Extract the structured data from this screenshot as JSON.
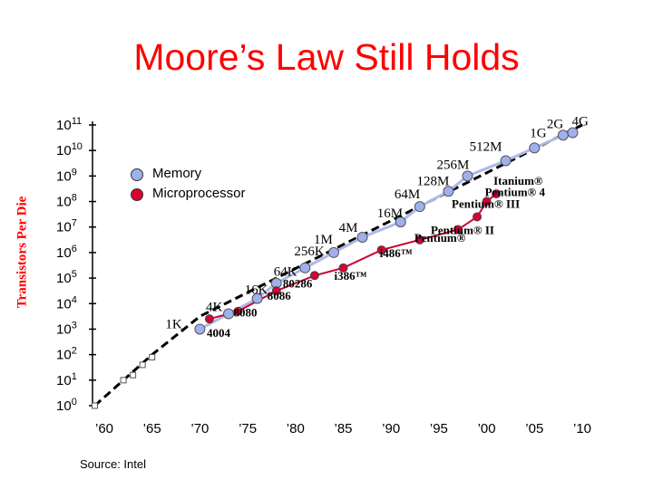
{
  "title": "Moore’s Law Still Holds",
  "source": "Source: Intel",
  "colors": {
    "memory": "#a0b0ec",
    "micro": "#dd0033",
    "memory_line": "#b0b8e8",
    "micro_line": "#cc0033",
    "trend": "#000000",
    "title": "#ff0000"
  },
  "chart_data": {
    "type": "line",
    "title": "Moore’s Law Still Holds",
    "ylabel": "Transistors Per Die",
    "xlabel": "",
    "y_scale": "log10",
    "ylim_exp": [
      0,
      11
    ],
    "xlim": [
      1958,
      2011
    ],
    "x_ticks": [
      {
        "value": 1960,
        "label": "’60"
      },
      {
        "value": 1965,
        "label": "’65"
      },
      {
        "value": 1970,
        "label": "’70"
      },
      {
        "value": 1975,
        "label": "’75"
      },
      {
        "value": 1980,
        "label": "’80"
      },
      {
        "value": 1985,
        "label": "’85"
      },
      {
        "value": 1990,
        "label": "’90"
      },
      {
        "value": 1995,
        "label": "’95"
      },
      {
        "value": 2000,
        "label": "’00"
      },
      {
        "value": 2005,
        "label": "’05"
      },
      {
        "value": 2010,
        "label": "’10"
      }
    ],
    "y_ticks": [
      0,
      1,
      2,
      3,
      4,
      5,
      6,
      7,
      8,
      9,
      10,
      11
    ],
    "legend": [
      {
        "name": "Memory",
        "color": "#a0b0ec"
      },
      {
        "name": "Microprocessor",
        "color": "#dd0033"
      }
    ],
    "series": [
      {
        "name": "Memory",
        "points": [
          {
            "x": 1970,
            "y": 3.0,
            "label": "1K"
          },
          {
            "x": 1973,
            "y": 3.6,
            "label": "4K"
          },
          {
            "x": 1976,
            "y": 4.2,
            "label": "16K"
          },
          {
            "x": 1978,
            "y": 4.8,
            "label": "64K"
          },
          {
            "x": 1981,
            "y": 5.4,
            "label": "256K"
          },
          {
            "x": 1984,
            "y": 6.0,
            "label": "1M"
          },
          {
            "x": 1987,
            "y": 6.6,
            "label": "4M"
          },
          {
            "x": 1991,
            "y": 7.2,
            "label": "16M"
          },
          {
            "x": 1993,
            "y": 7.8,
            "label": "64M"
          },
          {
            "x": 1996,
            "y": 8.4,
            "label": "128M"
          },
          {
            "x": 1998,
            "y": 9.0,
            "label": "256M"
          },
          {
            "x": 2002,
            "y": 9.6,
            "label": "512M"
          },
          {
            "x": 2005,
            "y": 10.1,
            "label": "1G"
          },
          {
            "x": 2008,
            "y": 10.6,
            "label": "2G"
          },
          {
            "x": 2009,
            "y": 10.7,
            "label": "4G"
          }
        ]
      },
      {
        "name": "Microprocessor",
        "points": [
          {
            "x": 1971,
            "y": 3.4,
            "label": "4004"
          },
          {
            "x": 1974,
            "y": 3.7,
            "label": "8080"
          },
          {
            "x": 1978,
            "y": 4.5,
            "label": "8086"
          },
          {
            "x": 1982,
            "y": 5.1,
            "label": "80286"
          },
          {
            "x": 1985,
            "y": 5.4,
            "label": "i386™"
          },
          {
            "x": 1989,
            "y": 6.1,
            "label": "i486™"
          },
          {
            "x": 1993,
            "y": 6.5,
            "label": "Pentium®"
          },
          {
            "x": 1997,
            "y": 6.9,
            "label": "Pentium® II"
          },
          {
            "x": 1999,
            "y": 7.4,
            "label": "Pentium® III"
          },
          {
            "x": 2000,
            "y": 8.0,
            "label": "Pentium® 4"
          },
          {
            "x": 2001,
            "y": 8.3,
            "label": "Itanium®"
          }
        ]
      }
    ],
    "early_points": [
      {
        "x": 1959,
        "y": 0.0
      },
      {
        "x": 1962,
        "y": 1.0
      },
      {
        "x": 1963,
        "y": 1.2
      },
      {
        "x": 1964,
        "y": 1.6
      },
      {
        "x": 1965,
        "y": 1.9
      }
    ],
    "trend_line": [
      {
        "x": 1959,
        "y": 0.0
      },
      {
        "x": 1965,
        "y": 2.0
      },
      {
        "x": 1970,
        "y": 3.5
      },
      {
        "x": 2010,
        "y": 11.0
      }
    ]
  }
}
